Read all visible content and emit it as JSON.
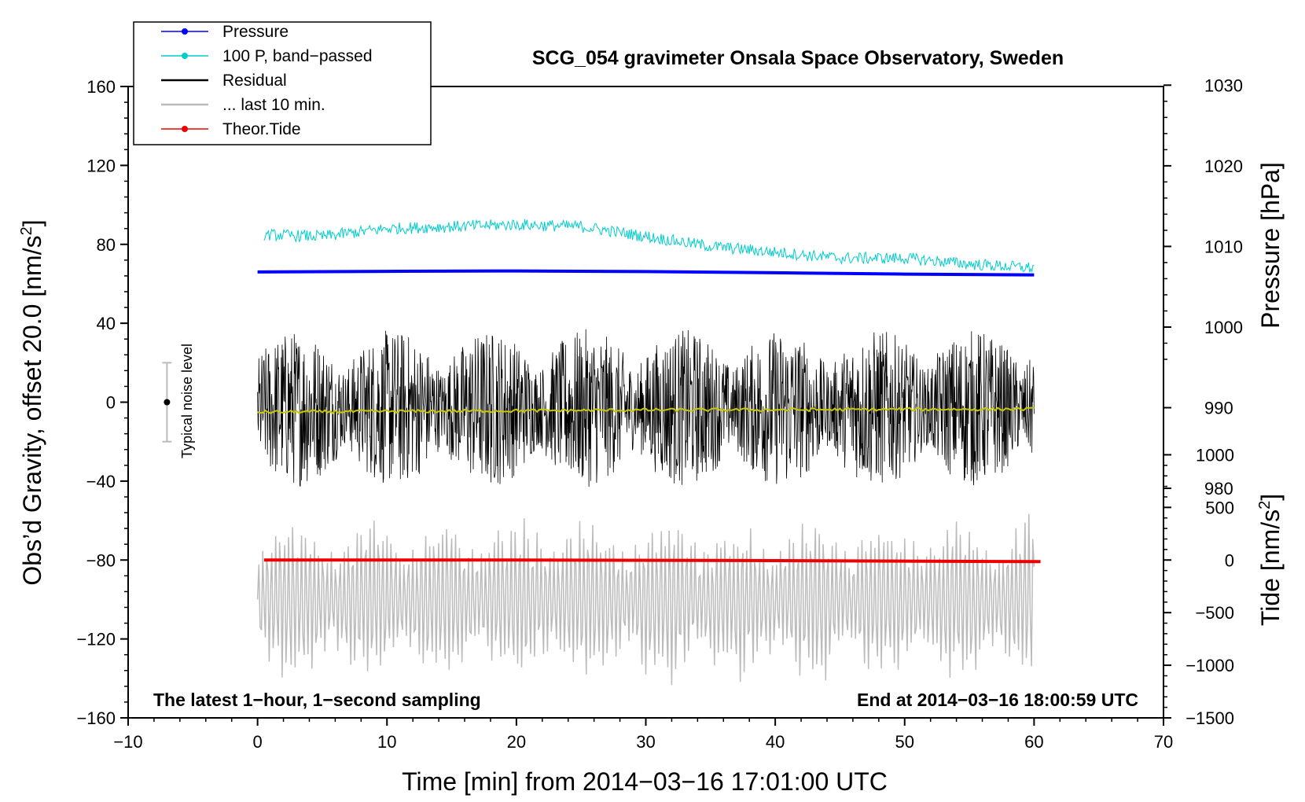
{
  "chart_data": {
    "type": "line",
    "title": "SCG_054 gravimeter Onsala Space Observatory, Sweden",
    "xlabel": "Time [min] from 2014−03−16 17:01:00 UTC",
    "ylabel_left": "Obs’d Gravity, offset 20.0 [nm/s",
    "ylabel_left_sup": "2",
    "ylabel_left_end": "]",
    "ylabel_pressure": "Pressure [hPa]",
    "ylabel_tide": "Tide [nm/s",
    "ylabel_tide_sup": "2",
    "ylabel_tide_end": "]",
    "xlim": [
      -10,
      70
    ],
    "ylim": [
      -160,
      160
    ],
    "x_ticks": [
      "−10",
      "0",
      "10",
      "20",
      "30",
      "40",
      "50",
      "60",
      "70"
    ],
    "x_tick_values": [
      -10,
      0,
      10,
      20,
      30,
      40,
      50,
      60,
      70
    ],
    "y_ticks_left": [
      "160",
      "120",
      "80",
      "40",
      "0",
      "−40",
      "−80",
      "−120",
      "−160"
    ],
    "y_tick_values_left": [
      160,
      120,
      80,
      40,
      0,
      -40,
      -80,
      -120,
      -160
    ],
    "pressure_ticks": [
      "1030",
      "1020",
      "1010",
      "1000",
      "990",
      "980"
    ],
    "pressure_tick_values": [
      1030,
      1020,
      1010,
      1000,
      990,
      980
    ],
    "pressure_mapping": {
      "hpa_at_left_80": 1010.26,
      "hpa_per_left_unit": 0.2447
    },
    "tide_ticks": [
      "1000",
      "500",
      "0",
      "−500",
      "−1000",
      "−1500"
    ],
    "tide_tick_values": [
      1000,
      500,
      0,
      -500,
      -1000,
      -1500
    ],
    "tide_mapping": {
      "tide_at_left_minus160": -1500,
      "tide_per_left_unit": 18.75
    },
    "legend": [
      {
        "label": "Pressure",
        "color": "#0000ff",
        "marker": true
      },
      {
        "label": "100 P, band−passed",
        "color": "#00cccc",
        "marker": true
      },
      {
        "label": "Residual",
        "color": "#000000",
        "marker": false
      },
      {
        "label": "... last 10 min.",
        "color": "#bbbbbb",
        "marker": false
      },
      {
        "label": "Theor.Tide",
        "color": "#ee0000",
        "marker": true
      }
    ],
    "series": [
      {
        "name": "Pressure",
        "color": "#0000ff",
        "axis": "left",
        "x": [
          0,
          10,
          20,
          30,
          40,
          50,
          60
        ],
        "values": [
          66,
          66.3,
          66.5,
          66.2,
          65.6,
          64.9,
          64.5
        ]
      },
      {
        "name": "100 P, band−passed",
        "color": "#00cccc",
        "axis": "left",
        "x": [
          0,
          5,
          10,
          15,
          20,
          25,
          30,
          35,
          40,
          45,
          50,
          55,
          60
        ],
        "values": [
          85,
          84,
          88,
          89,
          90,
          89,
          84,
          79,
          76,
          73,
          73,
          70,
          68
        ],
        "noise_amplitude": 3
      },
      {
        "name": "Residual",
        "color": "#000000",
        "axis": "left",
        "x_range": [
          0,
          60
        ],
        "values": [
          0
        ],
        "noise_amplitude": 40
      },
      {
        "name": "Residual smoothed",
        "color": "#c8c800",
        "axis": "left",
        "x": [
          0,
          30,
          60
        ],
        "values": [
          -5,
          -4,
          -3.5
        ]
      },
      {
        "name": "... last 10 min.",
        "color": "#bbbbbb",
        "axis": "left",
        "x_range": [
          0,
          60
        ],
        "values": [
          -100
        ],
        "noise_amplitude": 45
      },
      {
        "name": "Theor.Tide",
        "color": "#ee0000",
        "axis": "left",
        "x": [
          0.5,
          20,
          40,
          60.5
        ],
        "values": [
          -80,
          -80,
          -80.3,
          -80.8
        ]
      }
    ],
    "noise_bar": {
      "label": "Typical noise level",
      "x": -7,
      "center": 0,
      "half_range": 20
    },
    "annotation_left": "The latest 1−hour, 1−second sampling",
    "annotation_right": "End at 2014−03−16 18:00:59 UTC"
  }
}
